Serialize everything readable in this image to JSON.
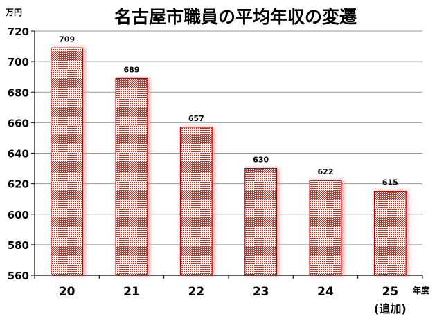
{
  "chart_data": {
    "type": "bar",
    "title": "名古屋市職員の平均年収の変遷",
    "ylabel": "万円",
    "xlabel": "年度",
    "categories": [
      "20",
      "21",
      "22",
      "23",
      "24",
      "25"
    ],
    "category_sublabels": [
      "",
      "",
      "",
      "",
      "",
      "(追加)"
    ],
    "values": [
      709,
      689,
      657,
      630,
      622,
      615
    ],
    "data_labels": [
      "709",
      "689",
      "657",
      "630",
      "622",
      "615"
    ],
    "ylim": [
      560,
      720
    ],
    "yticks": [
      560,
      580,
      600,
      620,
      640,
      660,
      680,
      700,
      720
    ],
    "grid": true,
    "legend": "none",
    "colors": {
      "bar_edge": "#b30000",
      "bar_pattern": "#c0392b",
      "bar_glow": "#ff9a9a",
      "grid": "#9a9a9a",
      "axis": "#000000"
    }
  }
}
